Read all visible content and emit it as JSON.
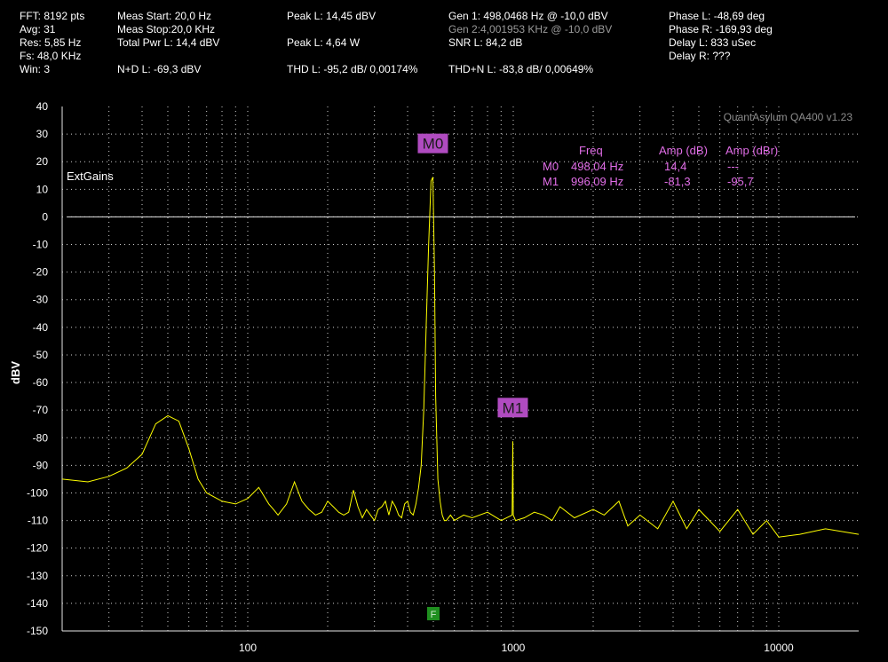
{
  "header": {
    "col1": [
      "FFT: 8192 pts",
      "Avg: 31",
      "Res: 5,85 Hz",
      "Fs: 48,0 KHz",
      "Win: 3"
    ],
    "meas_start": "Meas Start: 20,0 Hz",
    "meas_stop": "Meas Stop:20,0 KHz",
    "total_pwr": "Total Pwr L: 14,4 dBV",
    "nd": "N+D L: -69,3 dBV",
    "peak_l_dbv": "Peak L: 14,45 dBV",
    "peak_l_w": "Peak L: 4,64 W",
    "thd": "THD L: -95,2 dB/ 0,00174%",
    "gen1": "Gen 1: 498,0468 Hz @ -10,0  dBV",
    "gen2": "Gen 2:4,001953 KHz @ -10,0  dBV",
    "snr": "SNR L: 84,2 dB",
    "thdn": "THD+N L: -83,8 dB/ 0,00649%",
    "phase_l": "Phase L: -48,69 deg",
    "phase_r": "Phase R: -169,93 deg",
    "delay_l": "Delay L: 833 uSec",
    "delay_r": "Delay R: ???"
  },
  "watermark": "QuantAsylum QA400 v1.23",
  "ext_gains": "ExtGains",
  "markers_table": {
    "headers": [
      "Freq",
      "Amp (dB)",
      "Amp (dBr)"
    ],
    "rows": [
      {
        "name": "M0",
        "freq": "498,04 Hz",
        "amp": "14,4",
        "ampr": "---"
      },
      {
        "name": "M1",
        "freq": "996,09 Hz",
        "amp": "-81,3",
        "ampr": "-95,7"
      }
    ]
  },
  "marker_labels": [
    "M0",
    "M1"
  ],
  "f_badge": "F",
  "colors": {
    "trace": "#ffff00",
    "marker": "#e26ee8",
    "marker_label_bg": "#b04bc0",
    "grid": "#cfcfcf",
    "badge": "#1f8f1f"
  },
  "chart_data": {
    "type": "line",
    "ylabel": "dBV",
    "y_ticks": [
      "40",
      "30",
      "20",
      "10",
      "0",
      "-10",
      "-20",
      "-30",
      "-40",
      "-50",
      "-60",
      "-70",
      "-80",
      "-90",
      "-100",
      "-110",
      "-120",
      "-130",
      "-140",
      "-150"
    ],
    "x_tick_labels": [
      "100",
      "1000",
      "10000"
    ],
    "x_scale": "log",
    "xlim": [
      20,
      20000
    ],
    "ylim": [
      -150,
      40
    ],
    "grid": true,
    "zero_line": 0,
    "markers": [
      {
        "name": "M0",
        "x": 498.04,
        "y": 14.4
      },
      {
        "name": "M1",
        "x": 996.09,
        "y": -81.3
      }
    ],
    "series": [
      {
        "x": [
          20,
          25,
          30,
          35,
          40,
          45,
          50,
          55,
          60,
          65,
          70,
          80,
          90,
          100,
          110,
          120,
          125,
          130,
          140,
          150,
          160,
          170,
          180,
          190,
          200,
          210,
          220,
          230,
          240,
          250,
          260,
          270,
          280,
          290,
          300,
          310,
          320,
          330,
          340,
          350,
          360,
          370,
          380,
          390,
          400,
          410,
          420,
          430,
          440,
          450,
          460,
          470,
          480,
          490,
          498,
          505,
          510,
          520,
          530,
          540,
          550,
          560,
          580,
          600,
          650,
          700,
          800,
          900,
          990,
          996,
          1000,
          1020,
          1100,
          1200,
          1300,
          1400,
          1500,
          1700,
          2000,
          2200,
          2500,
          2700,
          3000,
          3500,
          4000,
          4500,
          5000,
          6000,
          7000,
          8000,
          9000,
          10000,
          12000,
          15000,
          20000
        ],
        "y": [
          -95,
          -96,
          -94,
          -91,
          -86,
          -75,
          -72,
          -74,
          -84,
          -95,
          -100,
          -103,
          -104,
          -102,
          -98,
          -104,
          -106,
          -108,
          -104,
          -96,
          -103,
          -106,
          -108,
          -107,
          -103,
          -105,
          -107,
          -108,
          -107,
          -99,
          -105,
          -109,
          -106,
          -108,
          -110,
          -106,
          -105,
          -103,
          -108,
          -103,
          -105,
          -108,
          -109,
          -104,
          -103,
          -107,
          -108,
          -104,
          -98,
          -90,
          -70,
          -40,
          -10,
          13,
          14.4,
          -20,
          -65,
          -95,
          -103,
          -108,
          -110,
          -110,
          -108,
          -110,
          -108,
          -109,
          -107,
          -110,
          -108,
          -81.3,
          -108,
          -110,
          -109,
          -107,
          -108,
          -110,
          -105,
          -109,
          -106,
          -108,
          -103,
          -112,
          -108,
          -113,
          -103,
          -113,
          -106,
          -114,
          -106,
          -115,
          -110,
          -116,
          -115,
          -113,
          -115
        ]
      }
    ]
  }
}
